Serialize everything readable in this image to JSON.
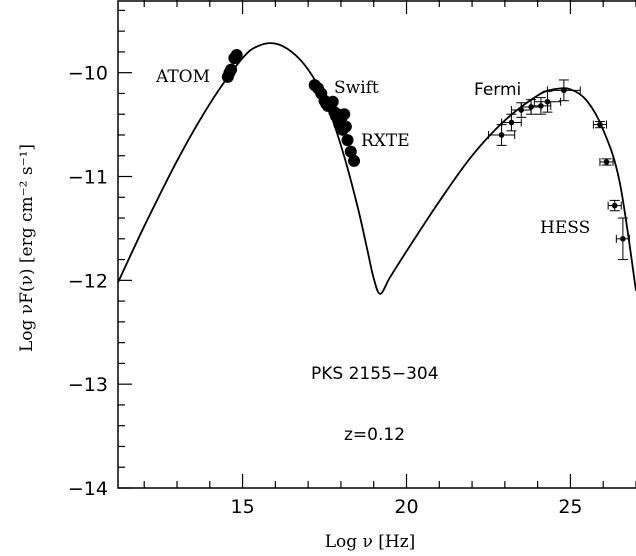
{
  "chart_data": {
    "type": "scatter",
    "xlabel": "Log ν [Hz]",
    "ylabel": "Log νF(ν) [erg cm⁻² s⁻¹]",
    "xlim": [
      11.2,
      27.0
    ],
    "ylim": [
      -14,
      -9.3
    ],
    "x_ticks": [
      "15",
      "20",
      "25"
    ],
    "y_ticks": [
      "−14",
      "−13",
      "−12",
      "−11",
      "−10"
    ],
    "grid": false,
    "annotations": [
      {
        "text": "ATOM"
      },
      {
        "text": "Swift"
      },
      {
        "text": "RXTE"
      },
      {
        "text": "Fermi"
      },
      {
        "text": "HESS"
      },
      {
        "text": "PKS 2155−304"
      },
      {
        "text": "z=0.12"
      }
    ],
    "series": [
      {
        "name": "ATOM",
        "x": [
          14.55,
          14.6,
          14.65,
          14.75,
          14.82
        ],
        "y": [
          -10.04,
          -10.0,
          -9.97,
          -9.86,
          -9.83
        ]
      },
      {
        "name": "Swift",
        "x": [
          17.2,
          17.3,
          17.4,
          17.5,
          17.55,
          17.6,
          17.7,
          17.75,
          17.8,
          17.85,
          17.9
        ],
        "y": [
          -10.12,
          -10.15,
          -10.2,
          -10.27,
          -10.3,
          -10.32,
          -10.3,
          -10.28,
          -10.38,
          -10.42,
          -10.4
        ]
      },
      {
        "name": "RXTE",
        "x": [
          17.95,
          18.0,
          18.05,
          18.1,
          18.15,
          18.2,
          18.3,
          18.4
        ],
        "y": [
          -10.5,
          -10.45,
          -10.55,
          -10.4,
          -10.52,
          -10.65,
          -10.76,
          -10.85
        ]
      },
      {
        "name": "Fermi",
        "x": [
          22.9,
          23.2,
          23.5,
          23.8,
          24.1,
          24.3,
          24.8
        ],
        "y": [
          -10.6,
          -10.48,
          -10.36,
          -10.33,
          -10.32,
          -10.28,
          -10.17
        ],
        "xerr": [
          0.4,
          0.3,
          0.3,
          0.3,
          0.3,
          0.4,
          0.5
        ],
        "yerr": [
          0.1,
          0.08,
          0.07,
          0.07,
          0.08,
          0.1,
          0.1
        ]
      },
      {
        "name": "HESS",
        "x": [
          25.9,
          26.1,
          26.35,
          26.6
        ],
        "y": [
          -10.5,
          -10.86,
          -11.28,
          -11.6
        ],
        "xerr": [
          0.2,
          0.2,
          0.2,
          0.2
        ],
        "yerr": [
          0.03,
          0.03,
          0.05,
          0.2
        ]
      },
      {
        "name": "model",
        "type": "line",
        "x": [
          11.2,
          12.0,
          13.0,
          14.0,
          15.0,
          15.5,
          16.0,
          16.5,
          17.0,
          17.5,
          18.0,
          18.5,
          18.8,
          19.0,
          19.2,
          19.5,
          20.0,
          21.0,
          22.0,
          23.0,
          24.0,
          24.5,
          25.0,
          25.5,
          26.0,
          26.5,
          27.0
        ],
        "y": [
          -12.02,
          -11.48,
          -10.85,
          -10.3,
          -9.86,
          -9.74,
          -9.72,
          -9.8,
          -9.97,
          -10.25,
          -10.7,
          -11.28,
          -11.7,
          -11.98,
          -12.13,
          -11.97,
          -11.72,
          -11.24,
          -10.8,
          -10.46,
          -10.22,
          -10.16,
          -10.16,
          -10.27,
          -10.55,
          -11.05,
          -12.1
        ]
      }
    ]
  }
}
